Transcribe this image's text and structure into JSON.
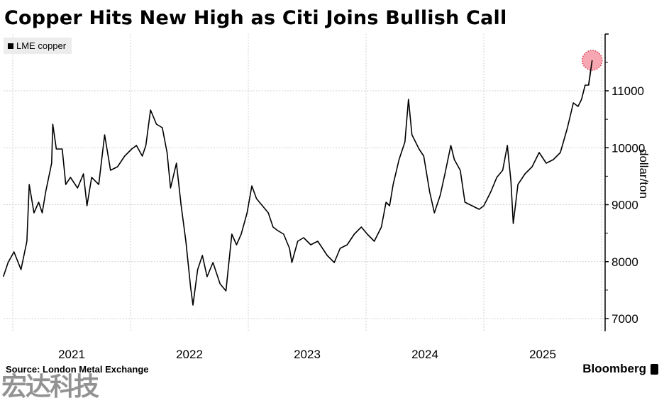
{
  "chart_data": {
    "type": "line",
    "title": "Copper Hits New High as Citi Joins Bullish Call",
    "legend": [
      "LME copper"
    ],
    "legend_placement": "top-left",
    "xlabel": "",
    "ylabel": "dollar/ton",
    "xlim": [
      2020.92,
      2025.98
    ],
    "ylim": [
      6750,
      12000
    ],
    "x_ticks": [
      "2021",
      "2022",
      "2023",
      "2024",
      "2025"
    ],
    "y_ticks": [
      7000,
      8000,
      9000,
      10000,
      11000
    ],
    "grid": true,
    "highlight": "latest value (new high)",
    "series": [
      {
        "name": "LME copper",
        "x": [
          2020.92,
          2020.96,
          2021.01,
          2021.07,
          2021.12,
          2021.14,
          2021.18,
          2021.22,
          2021.25,
          2021.28,
          2021.33,
          2021.34,
          2021.37,
          2021.42,
          2021.45,
          2021.49,
          2021.55,
          2021.6,
          2021.63,
          2021.67,
          2021.73,
          2021.78,
          2021.83,
          2021.89,
          2021.95,
          2022.01,
          2022.05,
          2022.1,
          2022.13,
          2022.17,
          2022.22,
          2022.27,
          2022.31,
          2022.34,
          2022.39,
          2022.43,
          2022.47,
          2022.51,
          2022.53,
          2022.57,
          2022.61,
          2022.65,
          2022.7,
          2022.76,
          2022.81,
          2022.86,
          2022.9,
          2022.94,
          2022.99,
          2023.03,
          2023.07,
          2023.12,
          2023.17,
          2023.21,
          2023.25,
          2023.3,
          2023.35,
          2023.37,
          2023.42,
          2023.47,
          2023.53,
          2023.59,
          2023.63,
          2023.67,
          2023.73,
          2023.78,
          2023.84,
          2023.9,
          2023.96,
          2024.01,
          2024.07,
          2024.13,
          2024.17,
          2024.2,
          2024.23,
          2024.28,
          2024.33,
          2024.36,
          2024.39,
          2024.45,
          2024.49,
          2024.54,
          2024.58,
          2024.63,
          2024.67,
          2024.72,
          2024.75,
          2024.8,
          2024.84,
          2024.9,
          2024.96,
          2025.0,
          2025.06,
          2025.11,
          2025.16,
          2025.2,
          2025.23,
          2025.25,
          2025.29,
          2025.35,
          2025.41,
          2025.47,
          2025.53,
          2025.59,
          2025.65,
          2025.71,
          2025.76,
          2025.8,
          2025.83,
          2025.86,
          2025.89,
          2025.92
        ],
        "y": [
          7735,
          7985,
          8171,
          7860,
          8358,
          9355,
          8857,
          9044,
          8857,
          9231,
          9729,
          10414,
          9978,
          9978,
          9355,
          9480,
          9293,
          9542,
          8981,
          9480,
          9355,
          10227,
          9604,
          9667,
          9854,
          9978,
          10041,
          9854,
          10041,
          10664,
          10414,
          10352,
          9916,
          9293,
          9729,
          8981,
          8358,
          7549,
          7237,
          7860,
          8109,
          7735,
          7985,
          7611,
          7486,
          8483,
          8296,
          8483,
          8857,
          9330,
          9106,
          8981,
          8857,
          8608,
          8545,
          8483,
          8234,
          7985,
          8358,
          8421,
          8296,
          8358,
          8234,
          8109,
          7985,
          8234,
          8296,
          8483,
          8608,
          8483,
          8358,
          8608,
          9044,
          8981,
          9355,
          9791,
          10103,
          10850,
          10227,
          9978,
          9854,
          9231,
          8857,
          9168,
          9542,
          10041,
          9791,
          9604,
          9044,
          8981,
          8919,
          8981,
          9231,
          9480,
          9604,
          10041,
          9416,
          8670,
          9355,
          9542,
          9667,
          9916,
          9729,
          9791,
          9916,
          10352,
          10788,
          10726,
          10850,
          11100,
          11100,
          11536
        ]
      }
    ]
  },
  "footer": {
    "source": "Source: London Metal Exchange",
    "brand": "Bloomberg",
    "watermark": "宏达科技"
  },
  "colors": {
    "line": "#000000",
    "highlight_fill": "#f6a3ad",
    "highlight_stroke": "#e0304a",
    "grid": "#d0d0d0",
    "legend_bg": "#ececec"
  }
}
